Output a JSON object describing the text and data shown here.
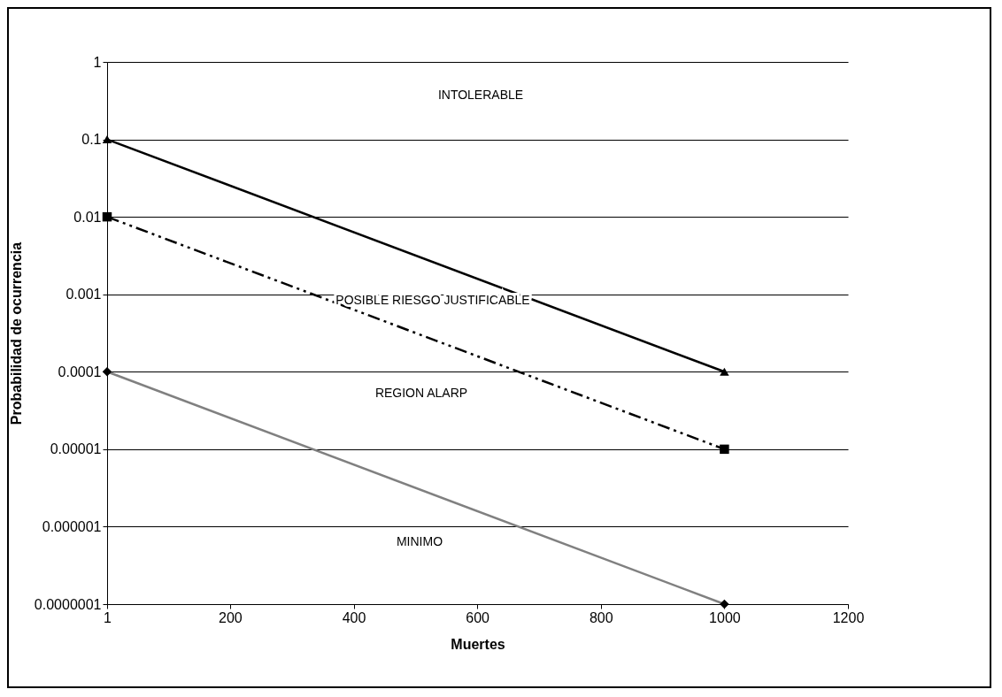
{
  "chart_data": {
    "type": "line",
    "xlabel": "Muertes",
    "ylabel": "Probabilidad de ocurrencia",
    "x": [
      1,
      1000
    ],
    "series": [
      {
        "color": "#000000",
        "values": [
          0.1,
          0.0001
        ],
        "marker": "triangle",
        "line_style": "solid"
      },
      {
        "color": "#000000",
        "values": [
          0.01,
          1e-05
        ],
        "marker": "square",
        "line_style": "dashed"
      },
      {
        "color": "#808080",
        "values": [
          0.0001,
          1e-07
        ],
        "marker": "diamond",
        "line_style": "solid"
      }
    ],
    "xlim": [
      1,
      1200
    ],
    "xticks": [
      1,
      200,
      400,
      600,
      800,
      1000,
      1200
    ],
    "ylim": [
      1e-07,
      1
    ],
    "log": "y",
    "yticks": [
      {
        "value": 1e-07,
        "label": "0.0000001"
      },
      {
        "value": 1e-06,
        "label": "0.000001"
      },
      {
        "value": 1e-05,
        "label": "0.00001"
      },
      {
        "value": 0.0001,
        "label": "0.0001"
      },
      {
        "value": 0.001,
        "label": "0.001"
      },
      {
        "value": 0.01,
        "label": "0.01"
      },
      {
        "value": 0.1,
        "label": "0.1"
      },
      {
        "value": 1,
        "label": "1"
      }
    ],
    "grid": "y",
    "annotations": [
      "INTOLERABLE",
      "POSIBLE RIESGO JUSTIFICABLE",
      "REGION ALARP",
      "MINIMO"
    ]
  }
}
